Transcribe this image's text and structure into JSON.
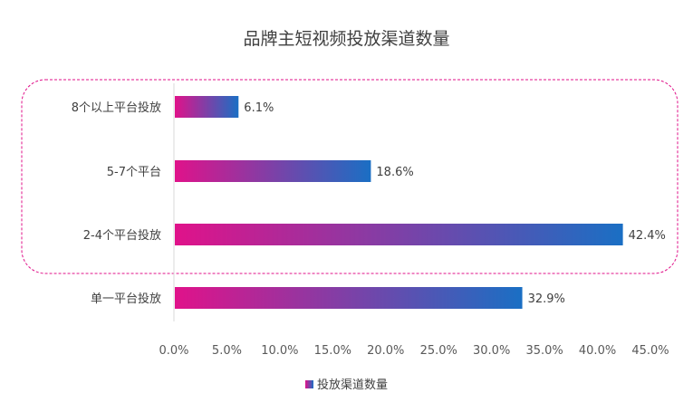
{
  "chart_data": {
    "type": "bar",
    "orientation": "horizontal",
    "title": "品牌主短视频投放渠道数量",
    "categories": [
      "8个以上平台投放",
      "5-7个平台",
      "2-4个平台投放",
      "单一平台投放"
    ],
    "series": [
      {
        "name": "投放渠道数量",
        "values": [
          6.1,
          18.6,
          42.4,
          32.9
        ]
      }
    ],
    "data_labels": [
      "6.1%",
      "18.6%",
      "42.4%",
      "32.9%"
    ],
    "xlim": [
      0,
      45
    ],
    "x_ticks": [
      0,
      5,
      10,
      15,
      20,
      25,
      30,
      35,
      40,
      45
    ],
    "x_tick_labels": [
      "0.0%",
      "5.0%",
      "10.0%",
      "15.0%",
      "20.0%",
      "25.0%",
      "30.0%",
      "35.0%",
      "40.0%",
      "45.0%"
    ],
    "xlabel": "",
    "ylabel": "",
    "grid": false,
    "legend_position": "bottom",
    "annotation": "dashed rounded rectangle highlighting the first three categories",
    "colors": {
      "gradient_start": "#e0128a",
      "gradient_end": "#1a6fc4",
      "highlight_border": "#e0128a",
      "axis_line": "#d9d9d9"
    }
  }
}
